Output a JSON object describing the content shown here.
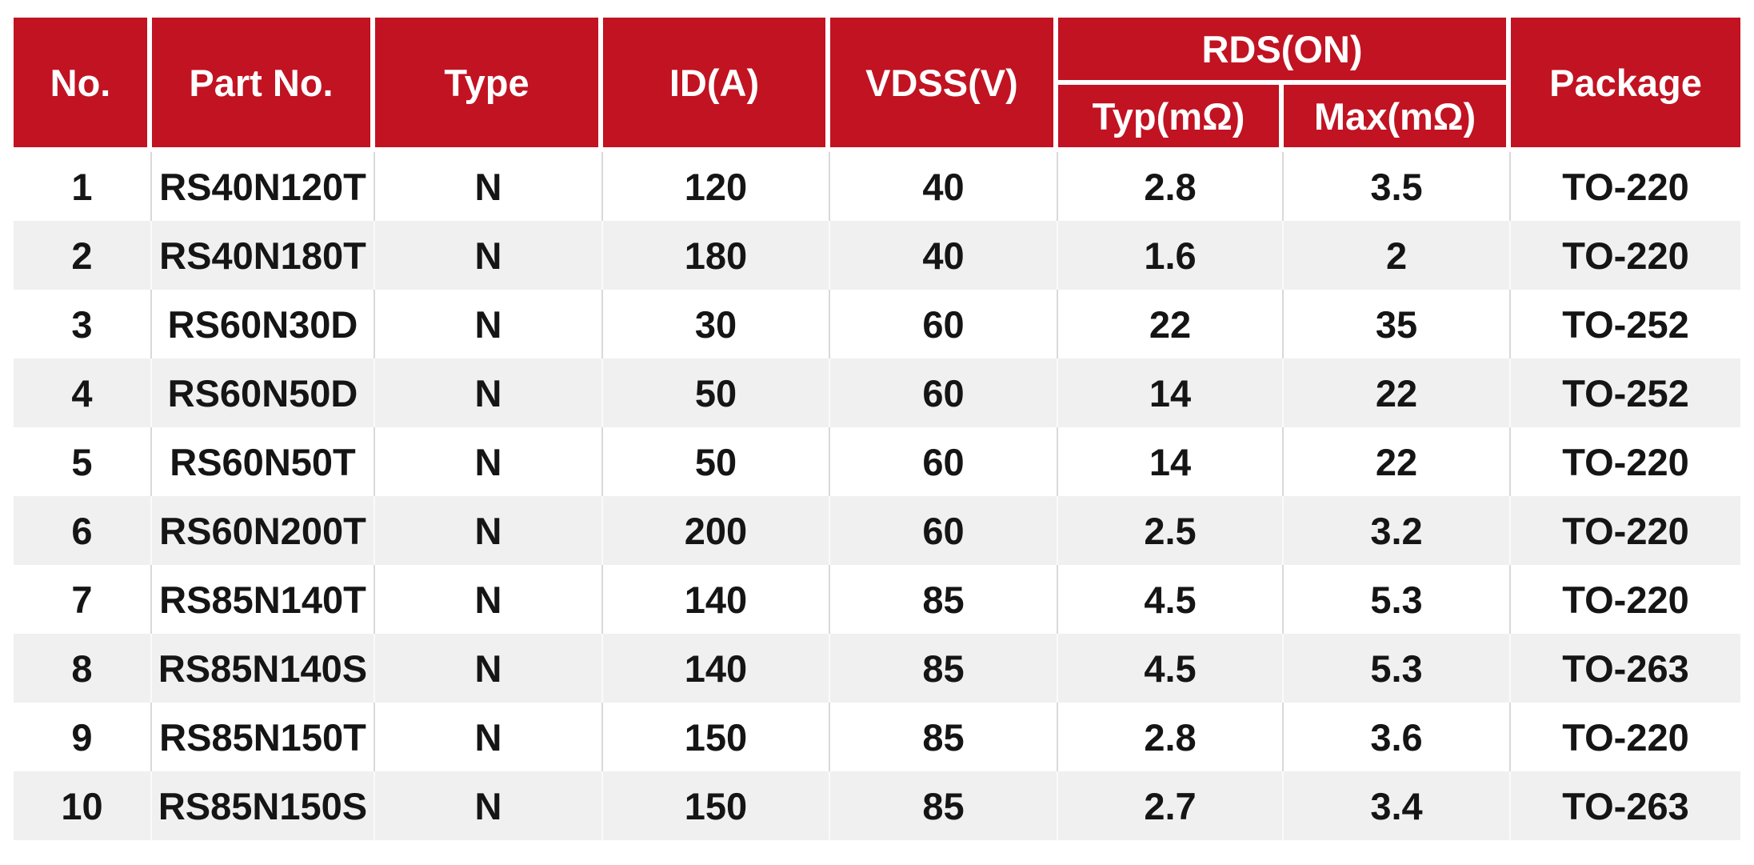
{
  "chart_data": {
    "type": "table",
    "title": "",
    "header": {
      "no": "No.",
      "part": "Part No.",
      "type": "Type",
      "id": "ID(A)",
      "vdss": "VDSS(V)",
      "rds": "RDS(ON)",
      "rds_typ": "Typ(mΩ)",
      "rds_max": "Max(mΩ)",
      "package": "Package"
    },
    "rows": [
      [
        "1",
        "RS40N120T",
        "N",
        "120",
        "40",
        "2.8",
        "3.5",
        "TO-220"
      ],
      [
        "2",
        "RS40N180T",
        "N",
        "180",
        "40",
        "1.6",
        "2",
        "TO-220"
      ],
      [
        "3",
        "RS60N30D",
        "N",
        "30",
        "60",
        "22",
        "35",
        "TO-252"
      ],
      [
        "4",
        "RS60N50D",
        "N",
        "50",
        "60",
        "14",
        "22",
        "TO-252"
      ],
      [
        "5",
        "RS60N50T",
        "N",
        "50",
        "60",
        "14",
        "22",
        "TO-220"
      ],
      [
        "6",
        "RS60N200T",
        "N",
        "200",
        "60",
        "2.5",
        "3.2",
        "TO-220"
      ],
      [
        "7",
        "RS85N140T",
        "N",
        "140",
        "85",
        "4.5",
        "5.3",
        "TO-220"
      ],
      [
        "8",
        "RS85N140S",
        "N",
        "140",
        "85",
        "4.5",
        "5.3",
        "TO-263"
      ],
      [
        "9",
        "RS85N150T",
        "N",
        "150",
        "85",
        "2.8",
        "3.6",
        "TO-220"
      ],
      [
        "10",
        "RS85N150S",
        "N",
        "150",
        "85",
        "2.7",
        "3.4",
        "TO-263"
      ]
    ],
    "layout": {
      "header_levels": 2,
      "rds_group_spans": [
        "rds_typ",
        "rds_max"
      ],
      "row_striping": "white-gray-alternating",
      "grid": "light vertical separators in body, white separators in header"
    },
    "colors": {
      "header_bg": "#c11322",
      "header_text": "#ffffff",
      "row_bg": "#ffffff",
      "row_alt_bg": "#f0f0f0",
      "body_text": "#151515",
      "separator": "#d9d9d9"
    }
  }
}
